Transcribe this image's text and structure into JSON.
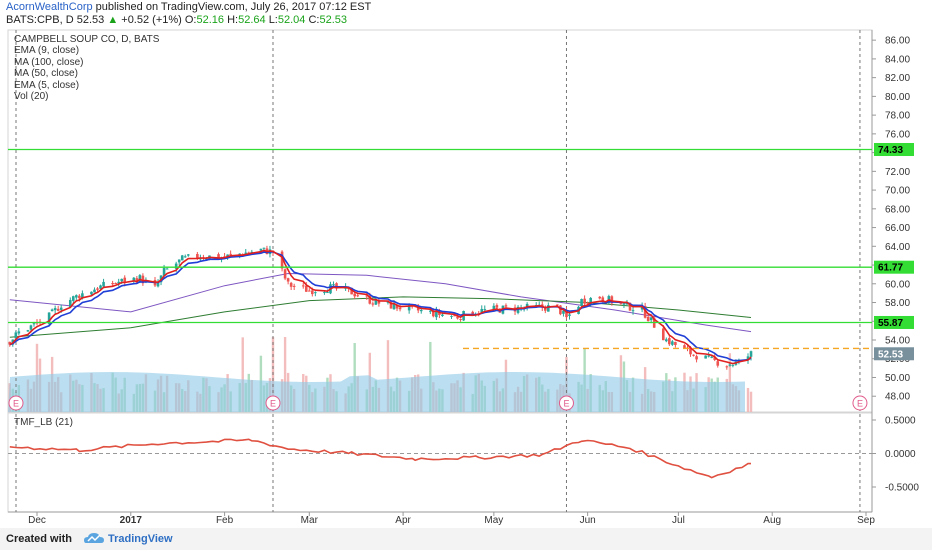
{
  "header": {
    "author": "AcornWealthCorp",
    "published_text": " published on TradingView.com, July 26, 2017 07:12 EST",
    "symbol": "BATS:CPB, D",
    "last": "52.53",
    "change_arrow": "▲",
    "change": "+0.52 (+1%)",
    "o_label": "O:",
    "o_value": "52.16",
    "h_label": "H:",
    "h_value": "52.64",
    "l_label": "L:",
    "l_value": "52.04",
    "c_label": "C:",
    "c_value": "52.53"
  },
  "legend": {
    "title": "CAMPBELL SOUP CO, D, BATS",
    "items": [
      "EMA (9, close)",
      "MA (100, close)",
      "MA (50, close)",
      "EMA (5, close)",
      "Vol (20)"
    ]
  },
  "indicator": {
    "label": "TMF_LB (21)"
  },
  "price_axis": {
    "ticks": [
      "86.00",
      "84.00",
      "82.00",
      "80.00",
      "78.00",
      "76.00",
      "74.00",
      "72.00",
      "70.00",
      "68.00",
      "66.00",
      "64.00",
      "62.00",
      "60.00",
      "58.00",
      "56.00",
      "54.00",
      "52.00",
      "50.00",
      "48.00"
    ]
  },
  "tmf_axis": {
    "ticks": [
      "0.5000",
      "0.0000",
      "-0.5000"
    ]
  },
  "time_axis": {
    "ticks": [
      "Dec",
      "2017",
      "Feb",
      "Mar",
      "Apr",
      "May",
      "Jun",
      "Jul",
      "Aug",
      "Sep"
    ]
  },
  "levels": [
    {
      "value": 74.33,
      "label": "74.33",
      "color": "#33dd33"
    },
    {
      "value": 61.77,
      "label": "61.77",
      "color": "#33dd33"
    },
    {
      "value": 55.87,
      "label": "55.87",
      "color": "#33dd33"
    }
  ],
  "dashed_level": {
    "value": 53.1,
    "color": "#f5a623"
  },
  "last_price_tag": {
    "value": 52.53,
    "label": "52.53"
  },
  "earnings_marker": "E",
  "colors": {
    "up": "#26a69a",
    "down": "#ef5350",
    "ema9": "#1f3fd6",
    "ema5": "#e0201f",
    "ma100": "#7e57c2",
    "ma50": "#2e7d32",
    "vol": "#8ecae6",
    "tmf": "#e05040"
  },
  "footer": {
    "created": "Created with",
    "brand": "TradingView"
  },
  "chart_data": {
    "type": "candlestick",
    "title": "CAMPBELL SOUP CO, D, BATS",
    "ylim": [
      47,
      87
    ],
    "price_path": [
      [
        "2016-11-22",
        53.9
      ],
      [
        "2016-11-25",
        54.8
      ],
      [
        "2016-11-30",
        55.6
      ],
      [
        "2016-12-05",
        56.5
      ],
      [
        "2016-12-09",
        57.8
      ],
      [
        "2016-12-15",
        58.8
      ],
      [
        "2016-12-21",
        59.6
      ],
      [
        "2016-12-28",
        60.2
      ],
      [
        "2017-01-04",
        60.6
      ],
      [
        "2017-01-09",
        59.5
      ],
      [
        "2017-01-12",
        61.3
      ],
      [
        "2017-01-18",
        62.6
      ],
      [
        "2017-01-24",
        63.0
      ],
      [
        "2017-01-31",
        62.8
      ],
      [
        "2017-02-06",
        63.2
      ],
      [
        "2017-02-13",
        63.6
      ],
      [
        "2017-02-17",
        63.4
      ],
      [
        "2017-02-22",
        59.9
      ],
      [
        "2017-03-01",
        59.3
      ],
      [
        "2017-03-08",
        59.6
      ],
      [
        "2017-03-15",
        59.1
      ],
      [
        "2017-03-22",
        58.1
      ],
      [
        "2017-03-29",
        57.6
      ],
      [
        "2017-04-05",
        57.2
      ],
      [
        "2017-04-12",
        56.8
      ],
      [
        "2017-04-19",
        56.5
      ],
      [
        "2017-04-26",
        57.1
      ],
      [
        "2017-05-03",
        57.3
      ],
      [
        "2017-05-10",
        57.4
      ],
      [
        "2017-05-17",
        57.5
      ],
      [
        "2017-05-22",
        57.5
      ],
      [
        "2017-05-25",
        56.3
      ],
      [
        "2017-05-30",
        58.2
      ],
      [
        "2017-06-05",
        58.6
      ],
      [
        "2017-06-12",
        57.8
      ],
      [
        "2017-06-19",
        57.2
      ],
      [
        "2017-06-22",
        56.0
      ],
      [
        "2017-06-27",
        54.0
      ],
      [
        "2017-07-05",
        52.6
      ],
      [
        "2017-07-11",
        51.9
      ],
      [
        "2017-07-17",
        51.4
      ],
      [
        "2017-07-21",
        51.6
      ],
      [
        "2017-07-25",
        52.53
      ]
    ],
    "tmf_path": [
      [
        "2016-11-22",
        0.1
      ],
      [
        "2016-12-15",
        0.05
      ],
      [
        "2017-01-10",
        0.15
      ],
      [
        "2017-02-10",
        0.2
      ],
      [
        "2017-02-22",
        0.07
      ],
      [
        "2017-03-15",
        0.0
      ],
      [
        "2017-04-05",
        -0.08
      ],
      [
        "2017-04-26",
        -0.06
      ],
      [
        "2017-05-17",
        -0.02
      ],
      [
        "2017-05-30",
        0.2
      ],
      [
        "2017-06-15",
        0.08
      ],
      [
        "2017-07-05",
        -0.25
      ],
      [
        "2017-07-12",
        -0.35
      ],
      [
        "2017-07-25",
        -0.15
      ]
    ]
  }
}
